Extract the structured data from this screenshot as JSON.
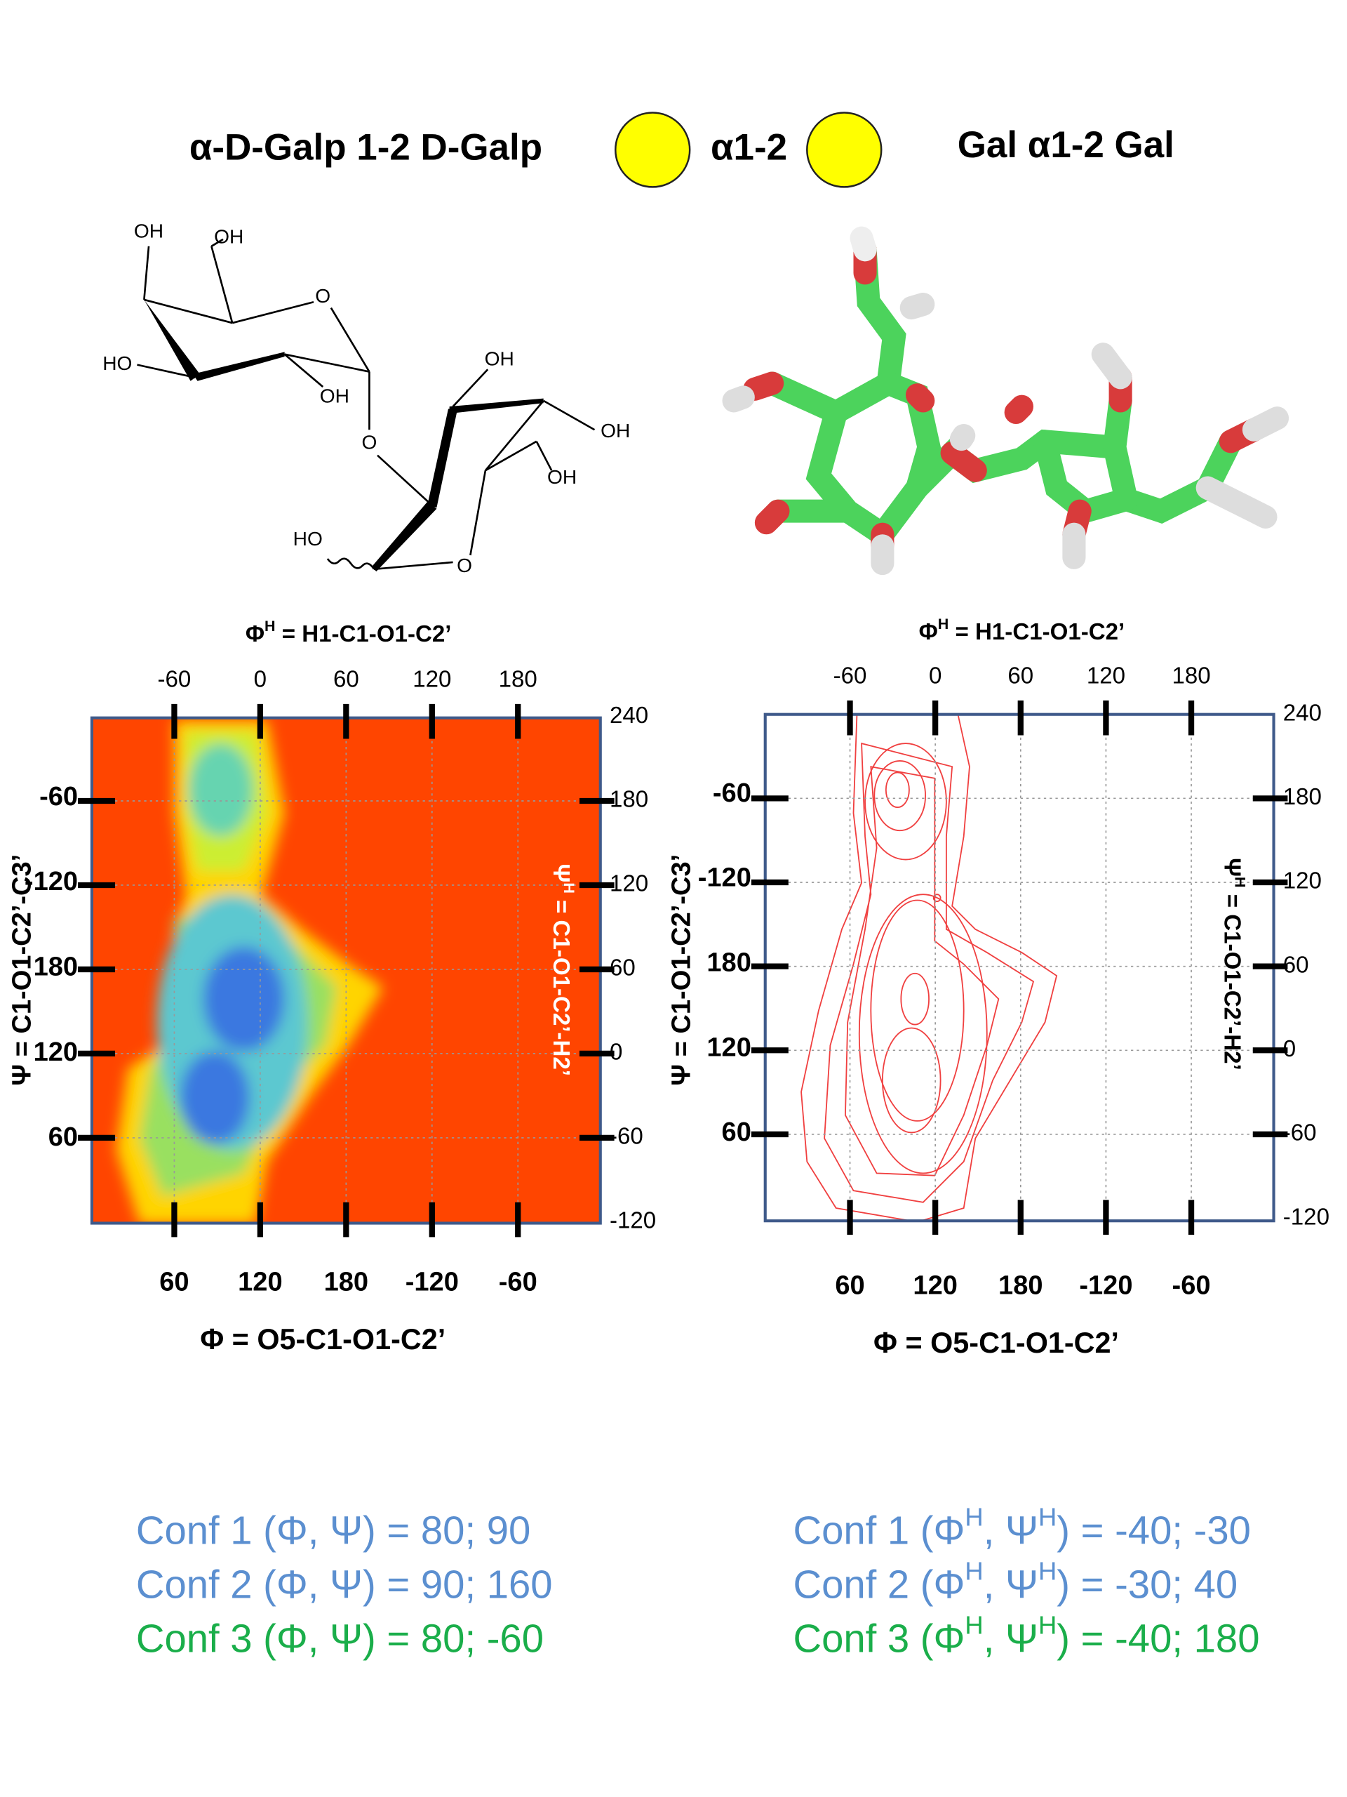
{
  "header": {
    "title_left": "α-D-Galp 1-2 D-Galp",
    "linkage": "α1-2",
    "title_right": "Gal α1-2 Gal"
  },
  "structure": {
    "atoms": [
      "OH",
      "OH",
      "O",
      "HO",
      "OH",
      "O",
      "OH",
      "OH",
      "OH",
      "HO",
      "O"
    ]
  },
  "plots": [
    {
      "top_title": [
        "Φ",
        "H",
        " = H1-C1-O1-C2’"
      ],
      "top_ticks": [
        -60,
        0,
        60,
        120,
        180
      ],
      "right_ticks": [
        240,
        180,
        120,
        60,
        0,
        -60,
        -120
      ],
      "right_title": [
        "Ψ",
        "H",
        " = C1-O1-C2’-H2’"
      ],
      "left_title": "Ψ = C1-O1-C2’-C3’",
      "left_ticks": [
        -60,
        -120,
        180,
        120,
        60
      ],
      "bottom_ticks": [
        60,
        120,
        180,
        -120,
        -60
      ],
      "bottom_title": "Φ = O5-C1-O1-C2’"
    },
    {
      "top_title": [
        "Φ",
        "H",
        " = H1-C1-O1-C2’"
      ],
      "top_ticks": [
        -60,
        0,
        60,
        120,
        180
      ],
      "right_ticks": [
        240,
        180,
        120,
        60,
        0,
        -60,
        -120
      ],
      "right_title": [
        "Ψ",
        "H",
        " = C1-O1-C2’-H2’"
      ],
      "left_title": "Ψ = C1-O1-C2’-C3’",
      "left_ticks": [
        -60,
        -120,
        180,
        120,
        60
      ],
      "bottom_ticks": [
        60,
        120,
        180,
        -120,
        -60
      ],
      "bottom_title": "Φ = O5-C1-O1-C2’"
    }
  ],
  "conformations": {
    "left": [
      {
        "parts": [
          "Conf 1 (Φ, Ψ) = 80; 90"
        ],
        "color": "#5b8fd0"
      },
      {
        "parts": [
          "Conf 2 (Φ, Ψ) = 90; 160"
        ],
        "color": "#5b8fd0"
      },
      {
        "parts": [
          "Conf 3 (Φ, Ψ) = 80; -60"
        ],
        "color": "#1aae4a"
      }
    ],
    "right": [
      {
        "parts": [
          "Conf 1 (Φ",
          "H",
          ", Ψ",
          "H",
          ") = -40; -30"
        ],
        "color": "#5b8fd0"
      },
      {
        "parts": [
          "Conf 2 (Φ",
          "H",
          ", Ψ",
          "H",
          ") = -30; 40"
        ],
        "color": "#5b8fd0"
      },
      {
        "parts": [
          "Conf 3 (Φ",
          "H",
          ", Ψ",
          "H",
          ") = -40; 180"
        ],
        "color": "#1aae4a"
      }
    ]
  }
}
